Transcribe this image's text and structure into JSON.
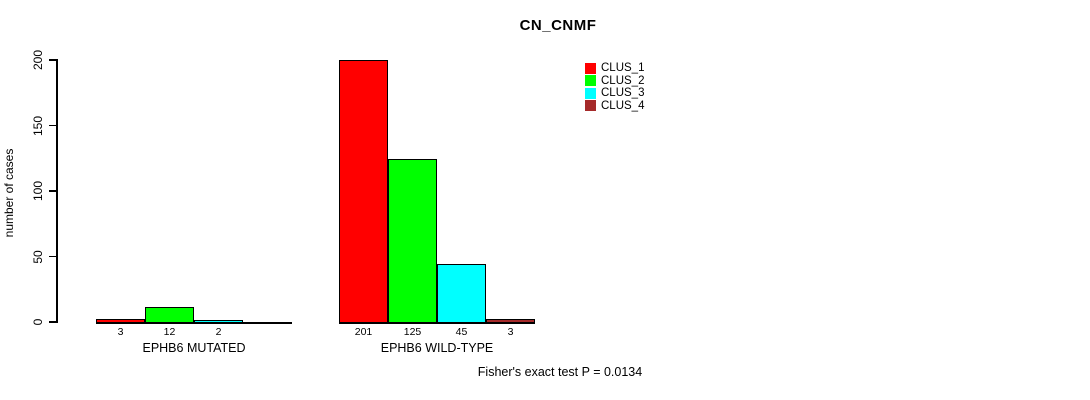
{
  "chart_data": {
    "type": "bar",
    "title": "CN_CNMF",
    "ylabel": "number of cases",
    "ylim": [
      0,
      200
    ],
    "yticks": [
      "0",
      "50",
      "100",
      "150",
      "200"
    ],
    "ytick_values": [
      0,
      50,
      100,
      150,
      200
    ],
    "grid": false,
    "legend_position": "top-right-inside",
    "categories": [
      "EPHB6 MUTATED",
      "EPHB6 WILD-TYPE"
    ],
    "series": [
      {
        "name": "CLUS_1",
        "color": "#FF0000",
        "values": [
          3,
          201
        ]
      },
      {
        "name": "CLUS_2",
        "color": "#00FF00",
        "values": [
          12,
          125
        ]
      },
      {
        "name": "CLUS_3",
        "color": "#00FFFF",
        "values": [
          2,
          45
        ]
      },
      {
        "name": "CLUS_4",
        "color": "#A52A2A",
        "values": [
          0,
          3
        ]
      }
    ],
    "bar_value_labels": [
      [
        "3",
        "12",
        "2",
        ""
      ],
      [
        "201",
        "125",
        "45",
        "3"
      ]
    ],
    "annotation": "Fisher's exact test P = 0.0134"
  }
}
